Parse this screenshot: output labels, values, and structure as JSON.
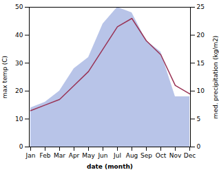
{
  "chart_data": {
    "type": "line",
    "xlabel": "date (month)",
    "ylabel": "max temp (C)",
    "y2label": "med. precipitation (kg/m2)",
    "categories": [
      "Jan",
      "Feb",
      "Mar",
      "Apr",
      "May",
      "Jun",
      "Jul",
      "Aug",
      "Sep",
      "Oct",
      "Nov",
      "Dec"
    ],
    "ylim": [
      0,
      50
    ],
    "yticks": [
      0,
      10,
      20,
      30,
      40,
      50
    ],
    "y2lim": [
      0,
      25
    ],
    "y2ticks": [
      0,
      5,
      10,
      15,
      20,
      25
    ],
    "series": [
      {
        "type": "area",
        "axis": "y2",
        "color": "#b8c4e8",
        "values": [
          7,
          8,
          10,
          14,
          16,
          22,
          25,
          24,
          19,
          17,
          9,
          9
        ]
      },
      {
        "type": "line",
        "color": "#993355",
        "values": [
          13,
          15,
          17,
          22,
          27,
          35,
          43,
          46,
          38,
          33,
          22,
          19
        ]
      }
    ]
  }
}
